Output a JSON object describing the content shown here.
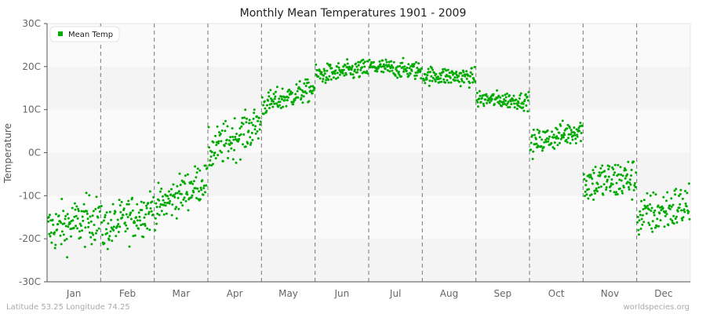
{
  "chart_data": {
    "type": "scatter",
    "title": "Monthly Mean Temperatures 1901 - 2009",
    "xlabel": "",
    "ylabel": "Temperature",
    "ylim": [
      -30,
      30
    ],
    "yticks": [
      "30C",
      "20C",
      "10C",
      "0C",
      "-10C",
      "-20C",
      "-30C"
    ],
    "ytick_values": [
      30,
      20,
      10,
      0,
      -10,
      -20,
      -30
    ],
    "categories": [
      "Jan",
      "Feb",
      "Mar",
      "Apr",
      "May",
      "Jun",
      "Jul",
      "Aug",
      "Sep",
      "Oct",
      "Nov",
      "Dec"
    ],
    "grid": "alternating horizontal bands, dashed vertical month dividers",
    "legend_position": "top-left",
    "series": [
      {
        "name": "Mean Temp",
        "color": "#00aa00",
        "points_per_month": 109,
        "monthly_summary": [
          {
            "month": "Jan",
            "start_mean": -18,
            "end_mean": -15,
            "spread": 3.5,
            "min": -26.5,
            "max": -6.5
          },
          {
            "month": "Feb",
            "start_mean": -18,
            "end_mean": -13,
            "spread": 3.2,
            "min": -26,
            "max": -6.5
          },
          {
            "month": "Mar",
            "start_mean": -13,
            "end_mean": -6,
            "spread": 2.8,
            "min": -18,
            "max": -3
          },
          {
            "month": "Apr",
            "start_mean": 0,
            "end_mean": 7,
            "spread": 3,
            "min": -4,
            "max": 10
          },
          {
            "month": "May",
            "start_mean": 11,
            "end_mean": 15,
            "spread": 1.7,
            "min": 9,
            "max": 17
          },
          {
            "month": "Jun",
            "start_mean": 18,
            "end_mean": 19.5,
            "spread": 1.4,
            "min": 15.5,
            "max": 22.5
          },
          {
            "month": "Jul",
            "start_mean": 20,
            "end_mean": 19,
            "spread": 1.3,
            "min": 16,
            "max": 24
          },
          {
            "month": "Aug",
            "start_mean": 18,
            "end_mean": 17.5,
            "spread": 1.3,
            "min": 14.5,
            "max": 22
          },
          {
            "month": "Sep",
            "start_mean": 12.5,
            "end_mean": 12,
            "spread": 1.2,
            "min": 8.5,
            "max": 16
          },
          {
            "month": "Oct",
            "start_mean": 2,
            "end_mean": 5.5,
            "spread": 1.8,
            "min": -2,
            "max": 8.5
          },
          {
            "month": "Nov",
            "start_mean": -7,
            "end_mean": -6,
            "spread": 3,
            "min": -18,
            "max": 0.5
          },
          {
            "month": "Dec",
            "start_mean": -15,
            "end_mean": -12,
            "spread": 3.2,
            "min": -26,
            "max": -6
          }
        ]
      }
    ]
  },
  "legend": {
    "label": "Mean Temp",
    "color": "#00aa00"
  },
  "footer": {
    "left": "Latitude 53.25 Longitude 74.25",
    "right": "worldspecies.org"
  },
  "colors": {
    "band_light": "#fafafa",
    "band_dark": "#f4f4f4",
    "divider": "#777777",
    "axis": "#555555"
  }
}
